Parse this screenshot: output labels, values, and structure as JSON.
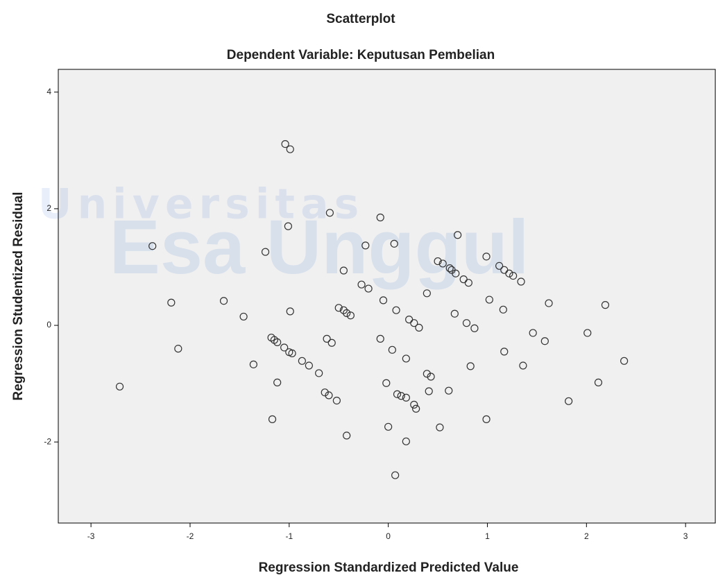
{
  "chart_data": {
    "type": "scatter",
    "title": "Scatterplot",
    "subtitle": "Dependent Variable: Keputusan Pembelian",
    "x_label": "Regression Standardized Predicted Value",
    "y_label": "Regression Studentized Residual",
    "watermark": [
      "Universitas",
      "Esa Unggul"
    ],
    "xlim": [
      -3.33,
      3.3
    ],
    "ylim": [
      -3.39,
      4.39
    ],
    "xticks": [
      -3,
      -2,
      -1,
      0,
      1,
      2,
      3
    ],
    "yticks": [
      -2,
      0,
      2,
      4
    ],
    "background": "#f0f0f0",
    "marker_color": "#333333",
    "x": [
      -1.04,
      -0.99,
      -0.59,
      -0.08,
      -1.01,
      -2.38,
      -1.24,
      -0.23,
      0.06,
      0.7,
      0.99,
      -0.45,
      0.5,
      0.55,
      0.62,
      0.64,
      0.68,
      0.76,
      0.81,
      1.12,
      1.17,
      1.22,
      1.26,
      1.34,
      -0.27,
      -0.2,
      -0.05,
      0.39,
      1.02,
      1.62,
      2.19,
      -2.19,
      -1.66,
      -1.46,
      -0.99,
      -0.5,
      -0.45,
      -0.42,
      -0.38,
      0.08,
      0.21,
      0.26,
      0.31,
      0.67,
      0.79,
      0.87,
      1.16,
      1.46,
      1.58,
      2.01,
      2.38,
      -2.12,
      -2.71,
      -1.36,
      -1.18,
      -1.15,
      -1.12,
      -1.05,
      -1.0,
      -0.97,
      -0.87,
      -0.8,
      -0.7,
      -0.62,
      -0.57,
      -0.08,
      0.04,
      0.18,
      0.39,
      0.43,
      0.83,
      1.17,
      1.36,
      -1.12,
      -0.02,
      -0.64,
      -0.6,
      -0.52,
      0.09,
      0.13,
      0.18,
      0.41,
      0.26,
      0.28,
      0.61,
      2.12,
      1.82,
      0.99,
      -1.17,
      0.0,
      0.52,
      -0.42,
      0.18,
      0.07
    ],
    "y": [
      3.11,
      3.02,
      1.93,
      1.85,
      1.7,
      1.36,
      1.26,
      1.37,
      1.4,
      1.55,
      1.18,
      0.94,
      1.1,
      1.06,
      0.98,
      0.95,
      0.89,
      0.79,
      0.73,
      1.02,
      0.95,
      0.89,
      0.85,
      0.75,
      0.7,
      0.63,
      0.43,
      0.55,
      0.44,
      0.38,
      0.35,
      0.39,
      0.42,
      0.15,
      0.24,
      0.3,
      0.26,
      0.21,
      0.17,
      0.26,
      0.1,
      0.04,
      -0.04,
      0.2,
      0.04,
      -0.05,
      0.27,
      -0.13,
      -0.27,
      -0.13,
      -0.61,
      -0.4,
      -1.05,
      -0.67,
      -0.21,
      -0.25,
      -0.29,
      -0.38,
      -0.46,
      -0.48,
      -0.61,
      -0.69,
      -0.82,
      -0.23,
      -0.3,
      -0.23,
      -0.42,
      -0.57,
      -0.83,
      -0.88,
      -0.7,
      -0.45,
      -0.69,
      -0.98,
      -0.99,
      -1.15,
      -1.2,
      -1.29,
      -1.18,
      -1.21,
      -1.24,
      -1.13,
      -1.36,
      -1.43,
      -1.12,
      -0.98,
      -1.3,
      -1.61,
      -1.61,
      -1.74,
      -1.75,
      -1.89,
      -1.99,
      -2.57
    ]
  }
}
